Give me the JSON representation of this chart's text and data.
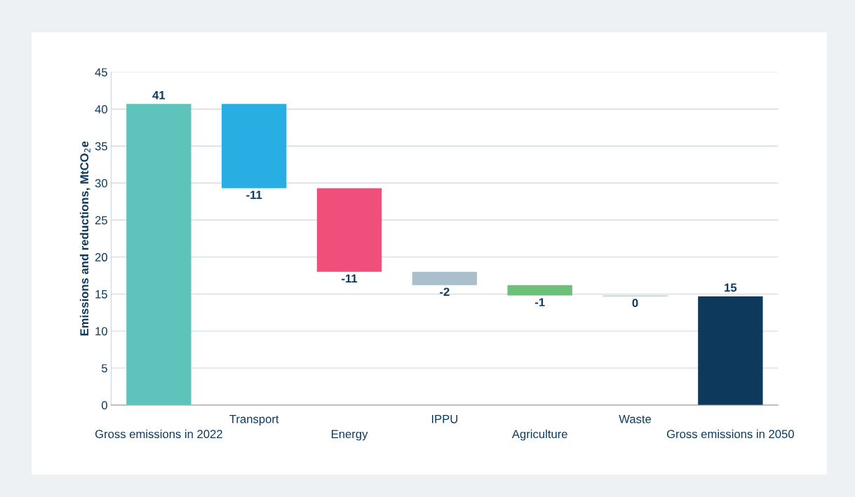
{
  "chart_data": {
    "type": "bar",
    "ylabel": "Emissions and reductions, MtCO$_{2}$e",
    "categories": [
      "Gross emissions in 2022",
      "Transport",
      "Energy",
      "IPPU",
      "Agriculture",
      "Waste",
      "Gross emissions in 2050"
    ],
    "base": [
      0,
      40.7,
      29.3,
      18.0,
      16.2,
      14.8,
      0
    ],
    "values": [
      40.7,
      -11.4,
      -11.3,
      -1.8,
      -1.4,
      -0.1,
      14.7
    ],
    "colors": [
      "#5ec4bb",
      "#29aee3",
      "#ee4f7b",
      "#a9bfcc",
      "#6cc17a",
      "#a9bfcc",
      "#0d3a5c"
    ],
    "value_labels": [
      "41",
      "-11",
      "-11",
      "-2",
      "-1",
      "0",
      "15"
    ],
    "ylim": [
      0,
      45
    ],
    "yticks": [
      0,
      5,
      10,
      15,
      20,
      25,
      30,
      35,
      40,
      45
    ],
    "grid": "y",
    "legend": false
  }
}
